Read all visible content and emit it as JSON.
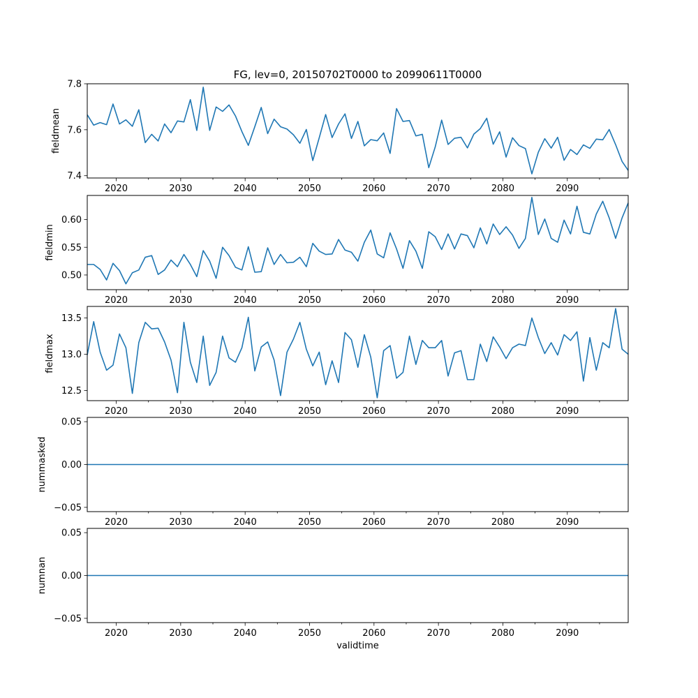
{
  "chart_data": [
    {
      "type": "line",
      "title": "FG, lev=0, 20150702T0000 to 20990611T0000",
      "ylabel": "fieldmean",
      "xlabel": "",
      "xlim": [
        2015.5,
        2099.45
      ],
      "ylim": [
        7.39,
        7.8
      ],
      "color": "#1f77b4",
      "xticks": [
        2020,
        2030,
        2040,
        2050,
        2060,
        2070,
        2080,
        2090
      ],
      "yticks": [
        "7.4",
        "7.6",
        "7.8"
      ],
      "x": [
        2015.5,
        2016.5,
        2017.5,
        2018.5,
        2019.5,
        2020.5,
        2021.5,
        2022.5,
        2023.5,
        2024.5,
        2025.5,
        2026.5,
        2027.5,
        2028.5,
        2029.5,
        2030.5,
        2031.5,
        2032.5,
        2033.5,
        2034.5,
        2035.5,
        2036.5,
        2037.5,
        2038.5,
        2039.5,
        2040.5,
        2041.5,
        2042.5,
        2043.5,
        2044.5,
        2045.5,
        2046.5,
        2047.5,
        2048.5,
        2049.5,
        2050.5,
        2051.5,
        2052.5,
        2053.5,
        2054.5,
        2055.5,
        2056.5,
        2057.5,
        2058.5,
        2059.5,
        2060.5,
        2061.5,
        2062.5,
        2063.5,
        2064.5,
        2065.5,
        2066.5,
        2067.5,
        2068.5,
        2069.5,
        2070.5,
        2071.5,
        2072.5,
        2073.5,
        2074.5,
        2075.5,
        2076.5,
        2077.5,
        2078.5,
        2079.5,
        2080.5,
        2081.5,
        2082.5,
        2083.5,
        2084.5,
        2085.5,
        2086.5,
        2087.5,
        2088.5,
        2089.5,
        2090.5,
        2091.5,
        2092.5,
        2093.5,
        2094.5,
        2095.5,
        2096.5,
        2097.5,
        2098.5,
        2099.45
      ],
      "values": [
        7.665,
        7.62,
        7.631,
        7.622,
        7.712,
        7.625,
        7.643,
        7.615,
        7.687,
        7.544,
        7.58,
        7.551,
        7.625,
        7.587,
        7.638,
        7.634,
        7.731,
        7.597,
        7.785,
        7.597,
        7.699,
        7.68,
        7.708,
        7.66,
        7.592,
        7.532,
        7.613,
        7.697,
        7.583,
        7.646,
        7.613,
        7.603,
        7.578,
        7.541,
        7.601,
        7.466,
        7.565,
        7.666,
        7.566,
        7.625,
        7.669,
        7.562,
        7.636,
        7.53,
        7.557,
        7.552,
        7.586,
        7.497,
        7.692,
        7.636,
        7.64,
        7.573,
        7.58,
        7.435,
        7.525,
        7.642,
        7.536,
        7.563,
        7.567,
        7.521,
        7.581,
        7.605,
        7.65,
        7.537,
        7.591,
        7.481,
        7.565,
        7.531,
        7.518,
        7.408,
        7.502,
        7.561,
        7.52,
        7.567,
        7.467,
        7.514,
        7.492,
        7.534,
        7.519,
        7.559,
        7.556,
        7.601,
        7.535,
        7.462,
        7.423
      ]
    },
    {
      "type": "line",
      "title": "",
      "ylabel": "fieldmin",
      "xlabel": "",
      "xlim": [
        2015.5,
        2099.45
      ],
      "ylim": [
        0.4735,
        0.6435
      ],
      "color": "#1f77b4",
      "xticks": [
        2020,
        2030,
        2040,
        2050,
        2060,
        2070,
        2080,
        2090
      ],
      "yticks": [
        "0.50",
        "0.55",
        "0.60"
      ],
      "x": [
        2015.5,
        2016.5,
        2017.5,
        2018.5,
        2019.5,
        2020.5,
        2021.5,
        2022.5,
        2023.5,
        2024.5,
        2025.5,
        2026.5,
        2027.5,
        2028.5,
        2029.5,
        2030.5,
        2031.5,
        2032.5,
        2033.5,
        2034.5,
        2035.5,
        2036.5,
        2037.5,
        2038.5,
        2039.5,
        2040.5,
        2041.5,
        2042.5,
        2043.5,
        2044.5,
        2045.5,
        2046.5,
        2047.5,
        2048.5,
        2049.5,
        2050.5,
        2051.5,
        2052.5,
        2053.5,
        2054.5,
        2055.5,
        2056.5,
        2057.5,
        2058.5,
        2059.5,
        2060.5,
        2061.5,
        2062.5,
        2063.5,
        2064.5,
        2065.5,
        2066.5,
        2067.5,
        2068.5,
        2069.5,
        2070.5,
        2071.5,
        2072.5,
        2073.5,
        2074.5,
        2075.5,
        2076.5,
        2077.5,
        2078.5,
        2079.5,
        2080.5,
        2081.5,
        2082.5,
        2083.5,
        2084.5,
        2085.5,
        2086.5,
        2087.5,
        2088.5,
        2089.5,
        2090.5,
        2091.5,
        2092.5,
        2093.5,
        2094.5,
        2095.5,
        2096.5,
        2097.5,
        2098.5,
        2099.45
      ],
      "values": [
        0.519,
        0.519,
        0.51,
        0.491,
        0.521,
        0.508,
        0.484,
        0.504,
        0.509,
        0.532,
        0.535,
        0.501,
        0.509,
        0.527,
        0.515,
        0.537,
        0.519,
        0.497,
        0.544,
        0.525,
        0.494,
        0.55,
        0.535,
        0.514,
        0.509,
        0.551,
        0.505,
        0.506,
        0.549,
        0.519,
        0.537,
        0.522,
        0.523,
        0.532,
        0.515,
        0.557,
        0.543,
        0.537,
        0.538,
        0.564,
        0.545,
        0.541,
        0.525,
        0.559,
        0.581,
        0.538,
        0.531,
        0.576,
        0.547,
        0.512,
        0.562,
        0.543,
        0.512,
        0.578,
        0.569,
        0.546,
        0.574,
        0.547,
        0.574,
        0.571,
        0.549,
        0.585,
        0.556,
        0.592,
        0.573,
        0.587,
        0.572,
        0.548,
        0.566,
        0.64,
        0.573,
        0.601,
        0.566,
        0.559,
        0.599,
        0.574,
        0.624,
        0.577,
        0.574,
        0.61,
        0.633,
        0.603,
        0.566,
        0.603,
        0.63
      ]
    },
    {
      "type": "line",
      "title": "",
      "ylabel": "fieldmax",
      "xlabel": "",
      "xlim": [
        2015.5,
        2099.45
      ],
      "ylim": [
        12.36,
        13.66
      ],
      "color": "#1f77b4",
      "xticks": [
        2020,
        2030,
        2040,
        2050,
        2060,
        2070,
        2080,
        2090
      ],
      "yticks": [
        "12.5",
        "13.0",
        "13.5"
      ],
      "x": [
        2015.5,
        2016.5,
        2017.5,
        2018.5,
        2019.5,
        2020.5,
        2021.5,
        2022.5,
        2023.5,
        2024.5,
        2025.5,
        2026.5,
        2027.5,
        2028.5,
        2029.5,
        2030.5,
        2031.5,
        2032.5,
        2033.5,
        2034.5,
        2035.5,
        2036.5,
        2037.5,
        2038.5,
        2039.5,
        2040.5,
        2041.5,
        2042.5,
        2043.5,
        2044.5,
        2045.5,
        2046.5,
        2047.5,
        2048.5,
        2049.5,
        2050.5,
        2051.5,
        2052.5,
        2053.5,
        2054.5,
        2055.5,
        2056.5,
        2057.5,
        2058.5,
        2059.5,
        2060.5,
        2061.5,
        2062.5,
        2063.5,
        2064.5,
        2065.5,
        2066.5,
        2067.5,
        2068.5,
        2069.5,
        2070.5,
        2071.5,
        2072.5,
        2073.5,
        2074.5,
        2075.5,
        2076.5,
        2077.5,
        2078.5,
        2079.5,
        2080.5,
        2081.5,
        2082.5,
        2083.5,
        2084.5,
        2085.5,
        2086.5,
        2087.5,
        2088.5,
        2089.5,
        2090.5,
        2091.5,
        2092.5,
        2093.5,
        2094.5,
        2095.5,
        2096.5,
        2097.5,
        2098.5,
        2099.45
      ],
      "values": [
        12.99,
        13.45,
        13.03,
        12.78,
        12.85,
        13.28,
        13.09,
        12.46,
        13.16,
        13.44,
        13.35,
        13.36,
        13.17,
        12.92,
        12.47,
        13.44,
        12.89,
        12.61,
        13.25,
        12.57,
        12.75,
        13.25,
        12.95,
        12.89,
        13.09,
        13.51,
        12.77,
        13.1,
        13.17,
        12.92,
        12.43,
        13.03,
        13.21,
        13.44,
        13.07,
        12.84,
        13.03,
        12.58,
        12.91,
        12.61,
        13.3,
        13.2,
        12.82,
        13.27,
        12.96,
        12.4,
        13.05,
        13.12,
        12.67,
        12.75,
        13.25,
        12.86,
        13.19,
        13.09,
        13.09,
        13.19,
        12.7,
        13.02,
        13.05,
        12.65,
        12.65,
        13.14,
        12.9,
        13.24,
        13.1,
        12.94,
        13.09,
        13.14,
        13.12,
        13.5,
        13.23,
        13.01,
        13.16,
        12.99,
        13.27,
        13.19,
        13.31,
        12.63,
        13.23,
        12.78,
        13.16,
        13.09,
        13.63,
        13.07,
        13.0
      ]
    },
    {
      "type": "line",
      "title": "",
      "ylabel": "nummasked",
      "xlabel": "",
      "xlim": [
        2015.5,
        2099.45
      ],
      "ylim": [
        -0.055,
        0.055
      ],
      "color": "#1f77b4",
      "xticks": [
        2020,
        2030,
        2040,
        2050,
        2060,
        2070,
        2080,
        2090
      ],
      "yticks": [
        "−0.05",
        "0.00",
        "0.05"
      ],
      "x": [
        2015.5,
        2099.45
      ],
      "values": [
        0,
        0
      ]
    },
    {
      "type": "line",
      "title": "",
      "ylabel": "numnan",
      "xlabel": "validtime",
      "xlim": [
        2015.5,
        2099.45
      ],
      "ylim": [
        -0.055,
        0.055
      ],
      "color": "#1f77b4",
      "xticks": [
        2020,
        2030,
        2040,
        2050,
        2060,
        2070,
        2080,
        2090
      ],
      "yticks": [
        "−0.05",
        "0.00",
        "0.05"
      ],
      "x": [
        2015.5,
        2099.45
      ],
      "values": [
        0,
        0
      ]
    }
  ]
}
